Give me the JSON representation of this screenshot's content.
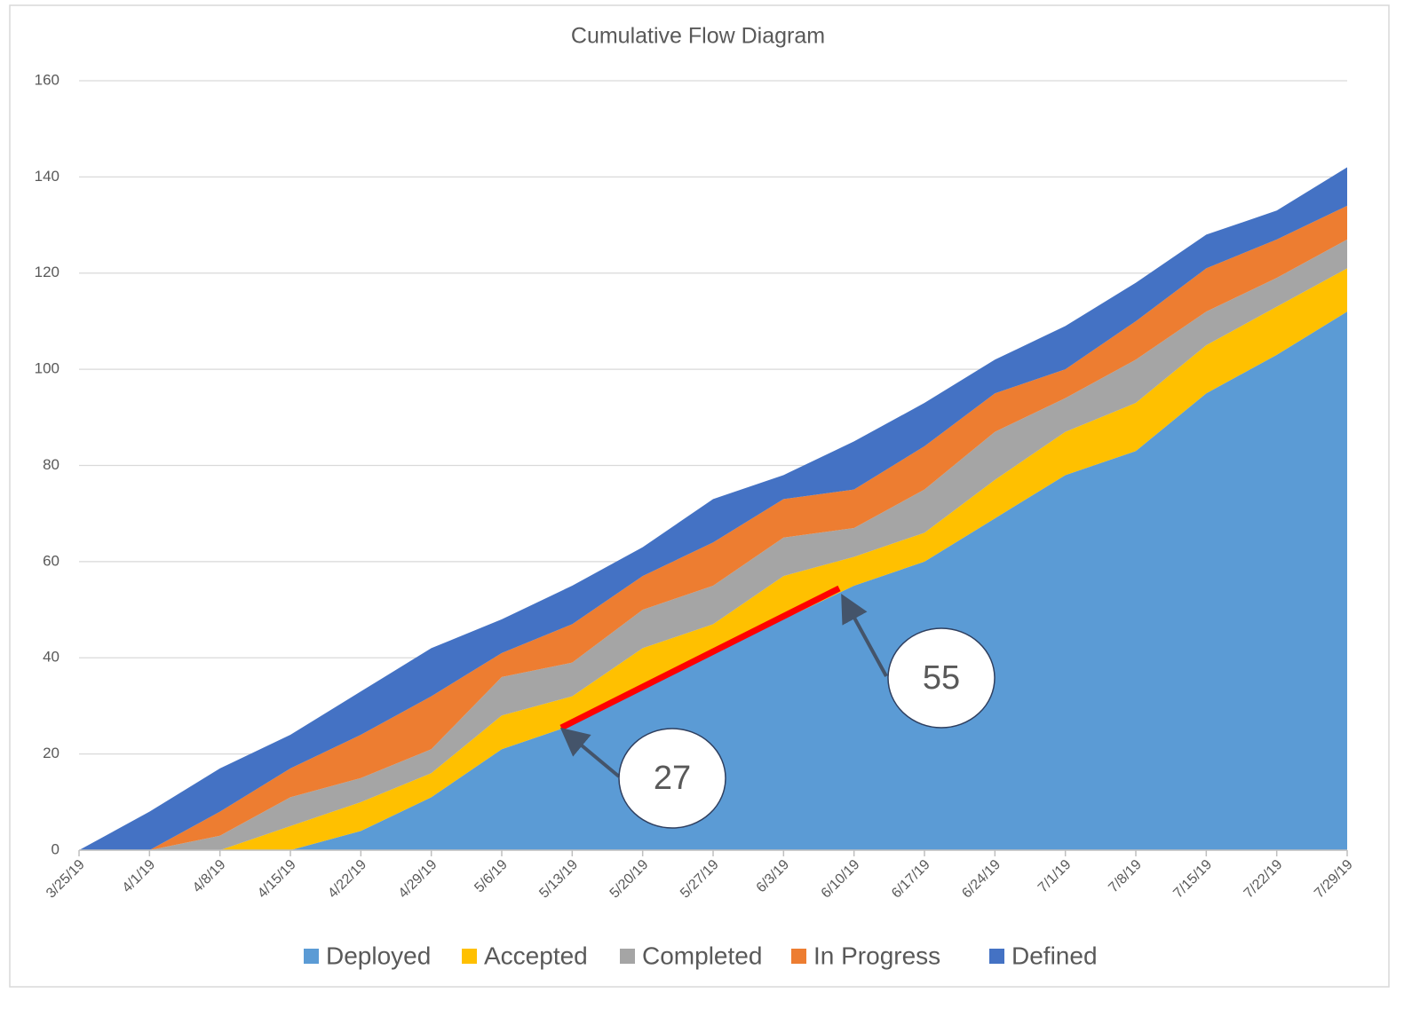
{
  "chart_data": {
    "type": "stacked_area",
    "title": "Cumulative Flow Diagram",
    "categories": [
      "3/25/19",
      "4/1/19",
      "4/8/19",
      "4/15/19",
      "4/22/19",
      "4/29/19",
      "5/6/19",
      "5/13/19",
      "5/20/19",
      "5/27/19",
      "6/3/19",
      "6/10/19",
      "6/17/19",
      "6/24/19",
      "7/1/19",
      "7/8/19",
      "7/15/19",
      "7/22/19",
      "7/29/19"
    ],
    "series": [
      {
        "name": "Deployed",
        "color": "#5b9bd5",
        "values": [
          0,
          0,
          0,
          0,
          4,
          11,
          21,
          26,
          34,
          41,
          48,
          55,
          60,
          69,
          78,
          83,
          95,
          103,
          112
        ]
      },
      {
        "name": "Accepted",
        "color": "#ffc000",
        "values": [
          0,
          0,
          0,
          5,
          6,
          5,
          7,
          6,
          8,
          6,
          9,
          6,
          6,
          8,
          9,
          10,
          10,
          10,
          9
        ]
      },
      {
        "name": "Completed",
        "color": "#a5a5a5",
        "values": [
          0,
          0,
          3,
          6,
          5,
          5,
          8,
          7,
          8,
          8,
          8,
          6,
          9,
          10,
          7,
          9,
          7,
          6,
          6
        ]
      },
      {
        "name": "In Progress",
        "color": "#ed7d31",
        "values": [
          0,
          0,
          5,
          6,
          9,
          11,
          5,
          8,
          7,
          9,
          8,
          8,
          9,
          8,
          6,
          8,
          9,
          8,
          7
        ]
      },
      {
        "name": "Defined",
        "color": "#4472c4",
        "values": [
          0,
          8,
          9,
          7,
          9,
          10,
          7,
          8,
          6,
          9,
          5,
          10,
          9,
          7,
          9,
          8,
          7,
          6,
          8
        ]
      }
    ],
    "ylim": [
      0,
      160
    ],
    "yticks": [
      0,
      20,
      40,
      60,
      80,
      100,
      120,
      140,
      160
    ],
    "grid": true,
    "legend": "bottom",
    "annotations": [
      "27",
      "55"
    ]
  }
}
